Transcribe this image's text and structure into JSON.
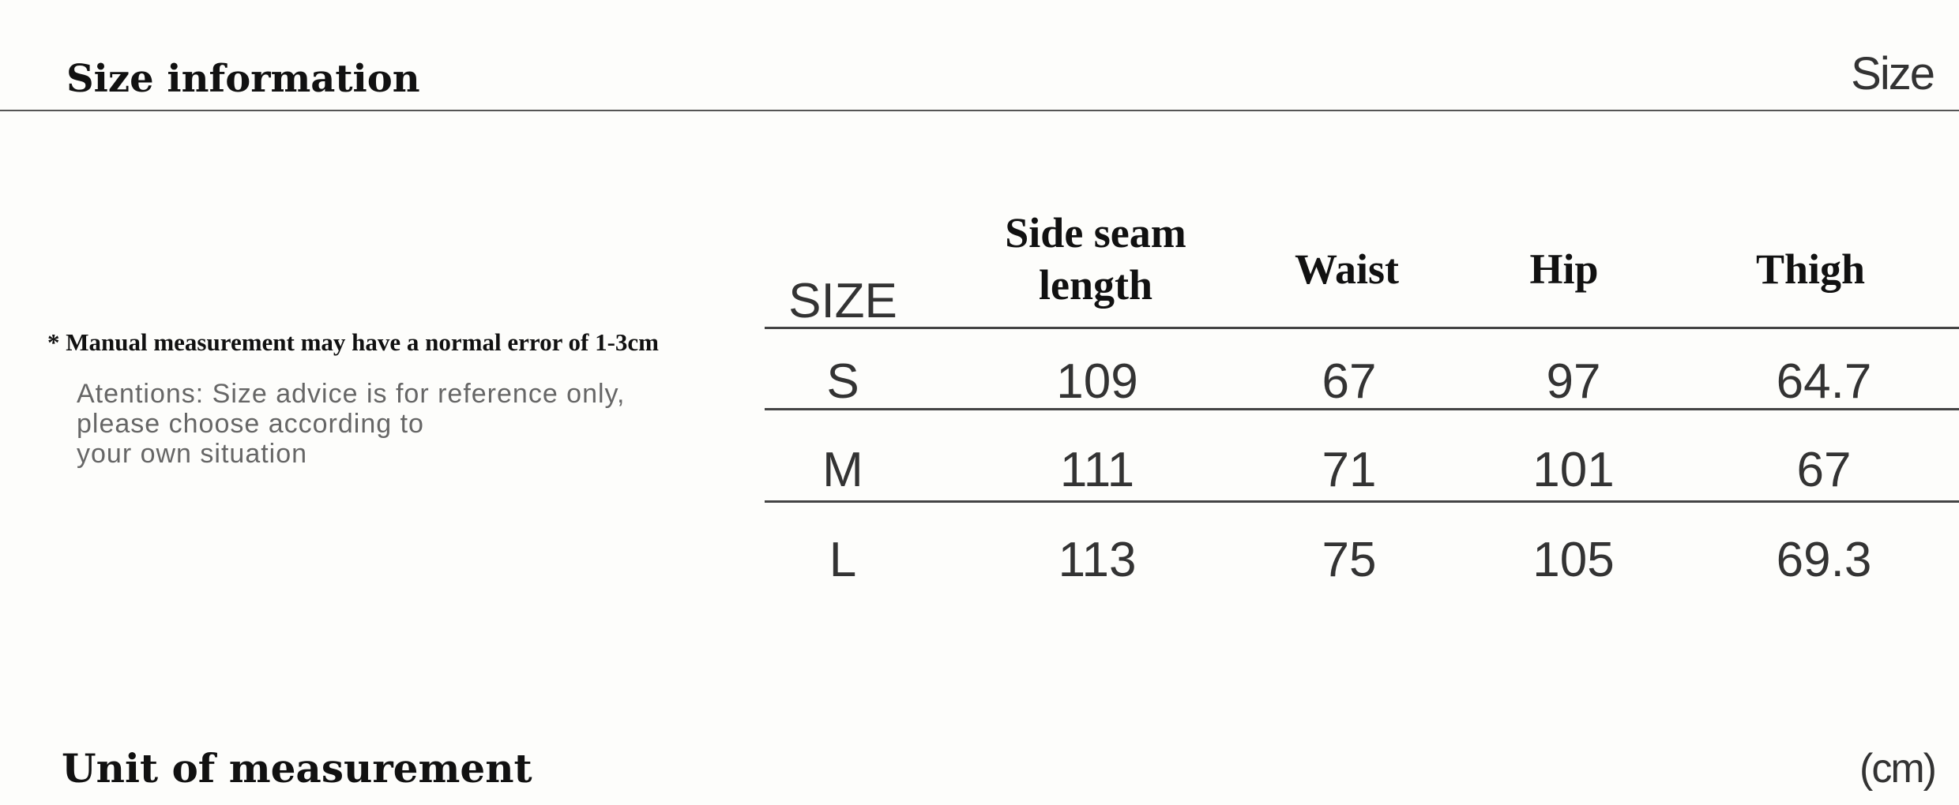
{
  "header": {
    "title": "Size information",
    "right_label": "Size"
  },
  "notes": {
    "measurement_note": "* Manual measurement may have a normal error of 1-3cm",
    "attention": "Atentions: Size advice is for reference only,\nplease choose according to\nyour own situation"
  },
  "table": {
    "columns": [
      "SIZE",
      "Side seam\nlength",
      "Waist",
      "Hip",
      "Thigh"
    ],
    "rows": [
      [
        "S",
        "109",
        "67",
        "97",
        "64.7"
      ],
      [
        "M",
        "111",
        "71",
        "101",
        "67"
      ],
      [
        "L",
        "113",
        "75",
        "105",
        "69.3"
      ]
    ]
  },
  "footer": {
    "label": "Unit of measurement",
    "unit": "(cm)"
  }
}
